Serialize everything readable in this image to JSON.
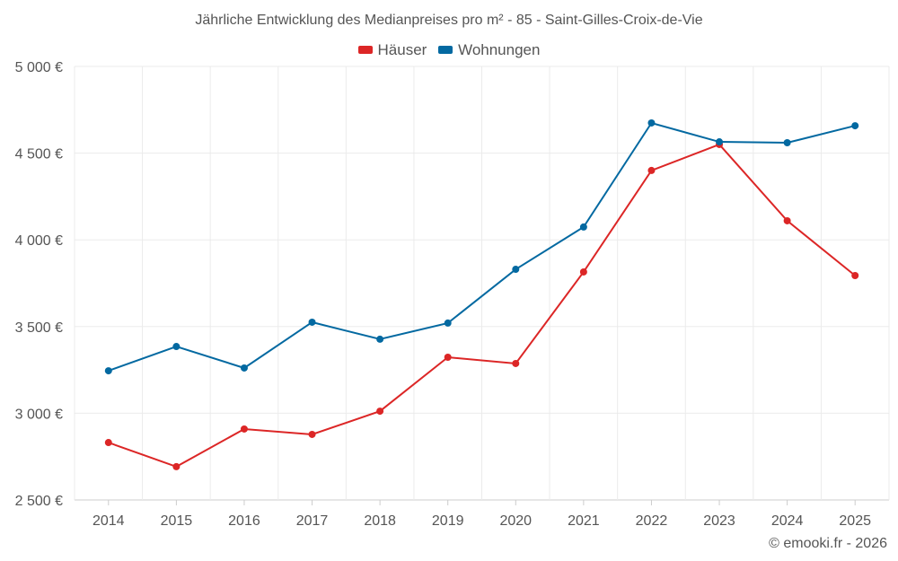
{
  "chart_data": {
    "type": "line",
    "title": "Jährliche Entwicklung des Medianpreises pro m² - 85 - Saint-Gilles-Croix-de-Vie",
    "xlabel": "",
    "ylabel": "",
    "categories": [
      "2014",
      "2015",
      "2016",
      "2017",
      "2018",
      "2019",
      "2020",
      "2021",
      "2022",
      "2023",
      "2024",
      "2025"
    ],
    "ylim": [
      2500,
      5000
    ],
    "yticks": [
      2500,
      3000,
      3500,
      4000,
      4500,
      5000
    ],
    "ytick_labels": [
      "2 500 €",
      "3 000 €",
      "3 500 €",
      "4 000 €",
      "4 500 €",
      "5 000 €"
    ],
    "grid": true,
    "legend_position": "top-center",
    "series": [
      {
        "name": "Häuser",
        "color": "#dc2626",
        "values": [
          2831,
          2692,
          2909,
          2878,
          3012,
          3323,
          3287,
          3815,
          4400,
          4550,
          4110,
          3794
        ]
      },
      {
        "name": "Wohnungen",
        "color": "#0369a1",
        "values": [
          3245,
          3385,
          3261,
          3525,
          3427,
          3520,
          3830,
          4074,
          4674,
          4565,
          4560,
          4658
        ]
      }
    ]
  },
  "credit": "© emooki.fr - 2026"
}
